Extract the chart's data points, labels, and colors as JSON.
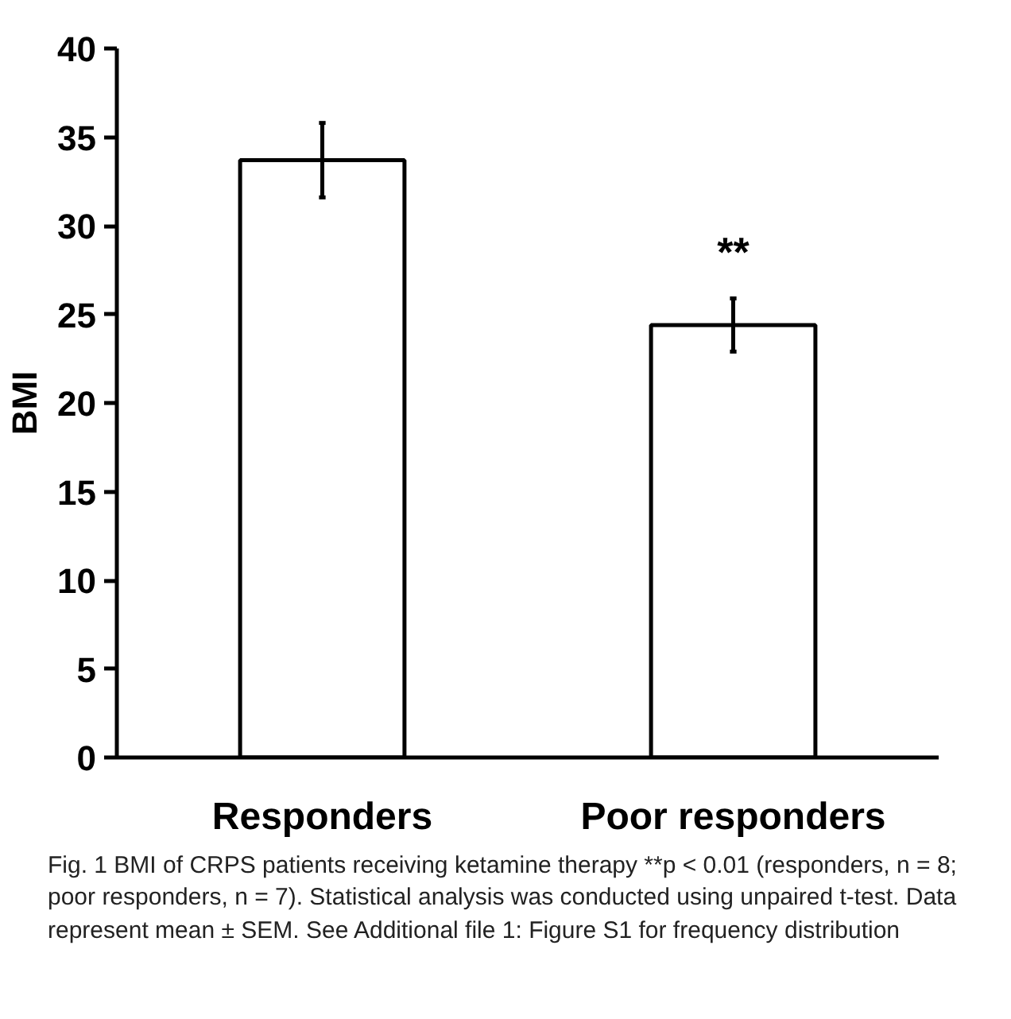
{
  "chart_data": {
    "type": "bar",
    "ylabel": "BMI",
    "categories": [
      "Responders",
      "Poor responders"
    ],
    "values": [
      33.7,
      24.4
    ],
    "errors": [
      [
        31.6,
        35.8
      ],
      [
        22.9,
        25.9
      ]
    ],
    "color": "#ffffff",
    "ylim": [
      0,
      40
    ],
    "yticks": [
      0,
      5,
      10,
      15,
      20,
      25,
      30,
      35,
      40
    ],
    "grid": false,
    "annotations": [
      {
        "text": "**",
        "x": "Poor responders",
        "y": 25.9
      },
      "Fig. 1 BMI of CRPS patients receiving ketamine therapy **p < 0.01 (responders, n = 8; poor responders, n = 7). Statistical analysis was conducted using unpaired t-test. Data represent mean ± SEM. See Additional file 1: Figure S1 for frequency distribution"
    ]
  }
}
